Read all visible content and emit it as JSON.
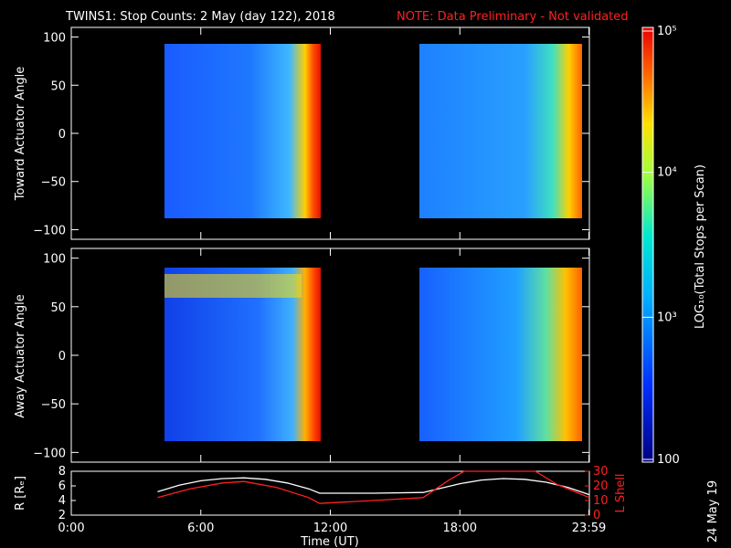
{
  "title": {
    "main": "TWINS1: Stop Counts:  2 May (day 122), 2018",
    "note": "NOTE: Data Preliminary - Not validated"
  },
  "stamp": "24 May 19",
  "chart_data": [
    {
      "type": "heatmap",
      "ylabel": "Toward Actuator Angle",
      "ylim": [
        -110,
        110
      ],
      "yticks": [
        "100",
        "50",
        "0",
        "−50",
        "−100"
      ],
      "ytick_values": [
        100,
        50,
        0,
        -50,
        -100
      ],
      "data_windows_hours": [
        [
          4.0,
          11.5
        ],
        [
          16.3,
          24.0
        ]
      ],
      "angle_range": [
        -90,
        90
      ],
      "zlim_log10": [
        2,
        5
      ]
    },
    {
      "type": "heatmap",
      "ylabel": "Away Actuator Angle",
      "ylim": [
        -110,
        110
      ],
      "yticks": [
        "100",
        "50",
        "0",
        "−50",
        "−100"
      ],
      "ytick_values": [
        100,
        50,
        0,
        -50,
        -100
      ],
      "data_windows_hours": [
        [
          4.0,
          11.5
        ],
        [
          16.3,
          24.0
        ]
      ],
      "angle_range": [
        -90,
        90
      ],
      "zlim_log10": [
        2,
        5
      ]
    },
    {
      "type": "line",
      "xlabel": "Time (UT)",
      "xlim": [
        0,
        24
      ],
      "xticks": [
        "0:00",
        "6:00",
        "12:00",
        "18:00",
        "23:59"
      ],
      "xtick_values": [
        0,
        6,
        12,
        18,
        23.98
      ],
      "left_axis": {
        "label": "R [Rₑ]",
        "ylim": [
          2,
          8
        ],
        "ticks": [
          "8",
          "6",
          "4",
          "2"
        ],
        "tick_values": [
          8,
          6,
          4,
          2
        ]
      },
      "right_axis": {
        "label": "L Shell",
        "ylim": [
          0,
          30
        ],
        "ticks": [
          "30",
          "20",
          "10",
          "0"
        ],
        "tick_values": [
          30,
          20,
          10,
          0
        ]
      },
      "series": [
        {
          "color": "#ffffff",
          "axis": "left",
          "x": [
            4.0,
            5.0,
            6.0,
            7.0,
            8.0,
            9.0,
            10.0,
            11.0,
            11.5,
            12,
            14,
            16.3,
            17,
            18,
            19,
            20,
            21,
            22,
            23,
            24.0
          ],
          "y": [
            5.2,
            6.1,
            6.7,
            7.0,
            7.1,
            6.9,
            6.4,
            5.6,
            5.0,
            5.0,
            5.0,
            5.1,
            5.6,
            6.3,
            6.8,
            7.0,
            6.9,
            6.5,
            5.8,
            4.8
          ]
        },
        {
          "color": "#ff2020",
          "axis": "right",
          "x": [
            4.0,
            5.5,
            7.0,
            8.0,
            9.5,
            11.0,
            11.5,
            14.0,
            16.3,
            17.5,
            18.2,
            20,
            21.5,
            22.5,
            24.0
          ],
          "y": [
            12,
            18,
            22,
            23,
            19,
            12,
            8,
            10,
            12,
            24,
            30,
            31,
            30,
            21,
            12
          ]
        }
      ]
    },
    {
      "type": "colorbar",
      "label": "LOG₁₀(Total Stops per Scan)",
      "ticks": [
        "10⁵",
        "10⁴",
        "10³",
        "100"
      ],
      "tick_values_log10": [
        5,
        4,
        3,
        2
      ],
      "zlim_log10": [
        2,
        5
      ]
    }
  ]
}
